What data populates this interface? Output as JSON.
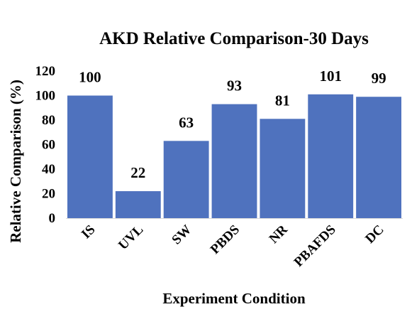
{
  "chart_data": {
    "type": "bar",
    "title": "AKD Relative Comparison-30 Days",
    "xlabel": "Experiment Condition",
    "ylabel": "Relative Comparison (%)",
    "categories": [
      "IS",
      "UVL",
      "SW",
      "PBDS",
      "NR",
      "PBAFDS",
      "DC"
    ],
    "values": [
      100,
      22,
      63,
      93,
      81,
      101,
      99
    ],
    "data_labels": [
      "100",
      "22",
      "63",
      "93",
      "81",
      "101",
      "99"
    ],
    "ylim": [
      0,
      120
    ],
    "yticks": [
      "0",
      "20",
      "40",
      "60",
      "80",
      "100",
      "120"
    ],
    "grid": false,
    "legend": "none",
    "bar_color": "#4F72BE"
  }
}
